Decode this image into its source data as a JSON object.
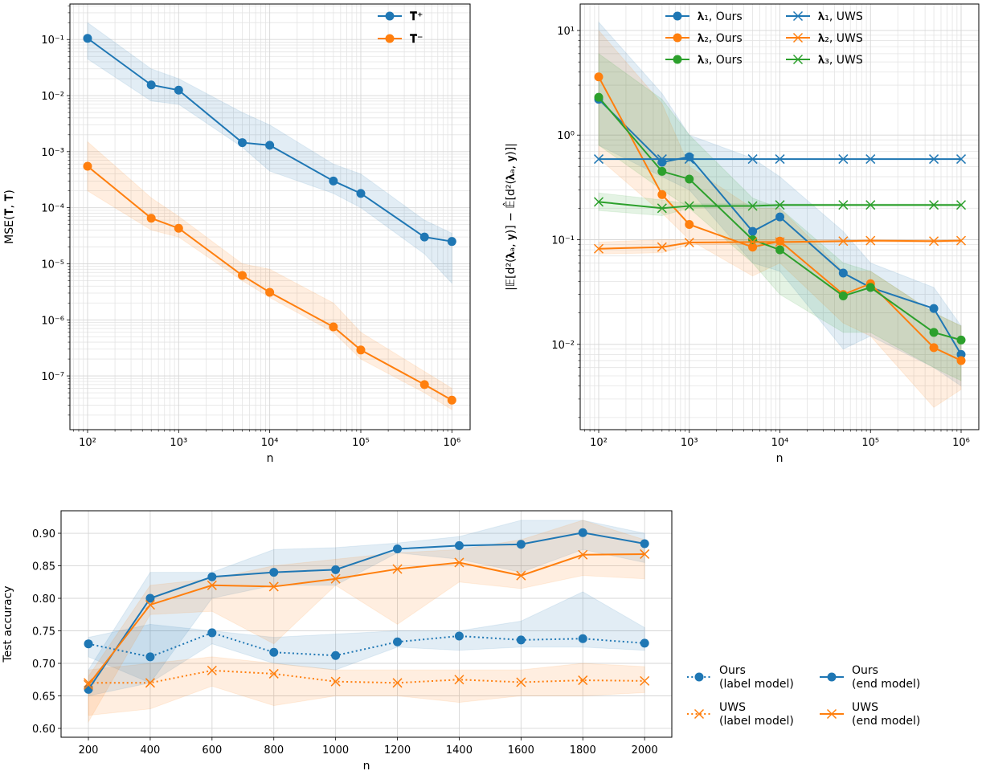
{
  "colors": {
    "blue": "#1f77b4",
    "orange": "#ff7f0e",
    "green": "#2ca02c"
  },
  "chart_data": [
    {
      "type": "line",
      "xscale": "log",
      "yscale": "log",
      "xlabel": "n",
      "ylabel": "MSE(𝐓, 𝐓̂)",
      "xlim": [
        64,
        1585000
      ],
      "ylim": [
        1.1e-08,
        0.43
      ],
      "grid": "major and minor",
      "legend": "top-right",
      "xticks": [
        100,
        1000,
        10000,
        100000,
        1000000
      ],
      "xtick_labels": [
        "10²",
        "10³",
        "10⁴",
        "10⁵",
        "10⁶"
      ],
      "yticks": [
        1e-07,
        1e-06,
        1e-05,
        0.0001,
        0.001,
        0.01,
        0.1
      ],
      "ytick_labels": [
        "10⁻⁷",
        "10⁻⁶",
        "10⁻⁵",
        "10⁻⁴",
        "10⁻³",
        "10⁻²",
        "10⁻¹"
      ],
      "x": [
        100,
        500,
        1000,
        5000,
        10000,
        50000,
        100000,
        500000,
        1000000
      ],
      "series": [
        {
          "name": "𝐓̂⁺",
          "color": "blue",
          "marker": "circle",
          "style": "solid",
          "values": [
            0.105,
            0.0155,
            0.0125,
            0.00145,
            0.0013,
            0.0003,
            0.00018,
            3e-05,
            2.5e-05
          ],
          "upper": [
            0.2,
            0.03,
            0.02,
            0.005,
            0.003,
            0.0006,
            0.0004,
            6e-05,
            3.5e-05
          ],
          "lower": [
            0.045,
            0.008,
            0.007,
            0.0012,
            0.00045,
            0.00018,
            0.0001,
            1.5e-05,
            4.5e-06
          ]
        },
        {
          "name": "𝐓̂⁻",
          "color": "orange",
          "marker": "circle",
          "style": "solid",
          "values": [
            0.00055,
            6.5e-05,
            4.3e-05,
            6.2e-06,
            3.1e-06,
            7.5e-07,
            2.9e-07,
            7e-08,
            3.7e-08
          ],
          "upper": [
            0.0015,
            0.00015,
            7e-05,
            1e-05,
            8e-06,
            2e-06,
            6e-07,
            1.2e-07,
            6e-08
          ],
          "lower": [
            0.0002,
            4e-05,
            3e-05,
            5e-06,
            2.5e-06,
            6e-07,
            2e-07,
            5e-08,
            2.5e-08
          ]
        }
      ]
    },
    {
      "type": "line",
      "xscale": "log",
      "yscale": "log",
      "xlabel": "n",
      "ylabel": "|𝔼[d²(𝛌ₐ, 𝐲)] − 𝔼̂[d²(𝛌ₐ, 𝐲)]|",
      "xlim": [
        62.5,
        1567000
      ],
      "ylim": [
        0.00153,
        17.9
      ],
      "grid": "major and minor",
      "legend": "top-right",
      "legend_columns": 2,
      "xticks": [
        100,
        1000,
        10000,
        100000,
        1000000
      ],
      "xtick_labels": [
        "10²",
        "10³",
        "10⁴",
        "10⁵",
        "10⁶"
      ],
      "yticks": [
        0.01,
        0.1,
        1,
        10
      ],
      "ytick_labels": [
        "10⁻²",
        "10⁻¹",
        "10⁰",
        "10¹"
      ],
      "x": [
        100,
        500,
        1000,
        5000,
        10000,
        50000,
        100000,
        500000,
        1000000
      ],
      "series": [
        {
          "name": "𝛌₁, Ours",
          "color": "blue",
          "marker": "circle",
          "style": "solid",
          "values": [
            2.2,
            0.55,
            0.62,
            0.12,
            0.165,
            0.048,
            0.035,
            0.022,
            0.008
          ],
          "upper": [
            12,
            2.5,
            1.0,
            0.6,
            0.4,
            0.12,
            0.06,
            0.035,
            0.015
          ],
          "lower": [
            0.8,
            0.4,
            0.3,
            0.06,
            0.05,
            0.009,
            0.012,
            0.006,
            0.004
          ]
        },
        {
          "name": "𝛌₂, Ours",
          "color": "orange",
          "marker": "circle",
          "style": "solid",
          "values": [
            3.6,
            0.27,
            0.14,
            0.085,
            0.097,
            0.03,
            0.038,
            0.0093,
            0.007
          ],
          "upper": [
            10,
            2,
            0.5,
            0.2,
            0.2,
            0.05,
            0.05,
            0.02,
            0.015
          ],
          "lower": [
            0.6,
            0.18,
            0.1,
            0.045,
            0.06,
            0.016,
            0.012,
            0.0025,
            0.0037
          ]
        },
        {
          "name": "𝛌₃, Ours",
          "color": "green",
          "marker": "circle",
          "style": "solid",
          "values": [
            2.3,
            0.45,
            0.38,
            0.1,
            0.08,
            0.029,
            0.035,
            0.013,
            0.011
          ],
          "upper": [
            6,
            2.2,
            1.0,
            0.25,
            0.2,
            0.06,
            0.05,
            0.02,
            0.015
          ],
          "lower": [
            0.8,
            0.3,
            0.2,
            0.06,
            0.03,
            0.013,
            0.013,
            0.006,
            0.0045
          ]
        },
        {
          "name": "𝛌₁, UWS",
          "color": "blue",
          "marker": "x",
          "style": "solid",
          "values": [
            0.59,
            0.59,
            0.59,
            0.59,
            0.59,
            0.59,
            0.59,
            0.59,
            0.59
          ]
        },
        {
          "name": "𝛌₂, UWS",
          "color": "orange",
          "marker": "x",
          "style": "solid",
          "values": [
            0.082,
            0.085,
            0.094,
            0.095,
            0.095,
            0.097,
            0.098,
            0.097,
            0.098
          ],
          "upper": [
            0.095,
            0.1,
            0.1,
            0.1,
            0.1,
            0.1,
            0.1,
            0.1,
            0.1
          ],
          "lower": [
            0.073,
            0.075,
            0.09,
            0.09,
            0.092,
            0.094,
            0.095,
            0.094,
            0.095
          ]
        },
        {
          "name": "𝛌₃, UWS",
          "color": "green",
          "marker": "x",
          "style": "solid",
          "values": [
            0.23,
            0.2,
            0.21,
            0.21,
            0.215,
            0.215,
            0.215,
            0.215,
            0.215
          ],
          "upper": [
            0.28,
            0.24,
            0.22,
            0.22,
            0.22,
            0.22,
            0.22,
            0.22,
            0.22
          ],
          "lower": [
            0.19,
            0.17,
            0.2,
            0.21,
            0.21,
            0.21,
            0.21,
            0.21,
            0.21
          ]
        }
      ]
    },
    {
      "type": "line",
      "xscale": "linear",
      "yscale": "linear",
      "xlabel": "n",
      "ylabel": "Test accuracy",
      "xlim": [
        111.5,
        2088
      ],
      "ylim": [
        0.5864,
        0.9346
      ],
      "grid": "major",
      "legend": "outside right",
      "legend_columns": 2,
      "xticks": [
        200,
        400,
        600,
        800,
        1000,
        1200,
        1400,
        1600,
        1800,
        2000
      ],
      "xtick_labels": [
        "200",
        "400",
        "600",
        "800",
        "1000",
        "1200",
        "1400",
        "1600",
        "1800",
        "2000"
      ],
      "yticks": [
        0.6,
        0.65,
        0.7,
        0.75,
        0.8,
        0.85,
        0.9
      ],
      "ytick_labels": [
        "0.60",
        "0.65",
        "0.70",
        "0.75",
        "0.80",
        "0.85",
        "0.90"
      ],
      "x": [
        200,
        400,
        600,
        800,
        1000,
        1200,
        1400,
        1600,
        1800,
        2000
      ],
      "series": [
        {
          "name": "Ours\n(label model)",
          "color": "blue",
          "marker": "circle",
          "style": "dotted",
          "values": [
            0.73,
            0.71,
            0.747,
            0.717,
            0.712,
            0.733,
            0.742,
            0.736,
            0.738,
            0.731
          ],
          "upper": [
            0.74,
            0.76,
            0.75,
            0.74,
            0.745,
            0.75,
            0.75,
            0.765,
            0.81,
            0.755
          ],
          "lower": [
            0.71,
            0.67,
            0.73,
            0.7,
            0.69,
            0.725,
            0.72,
            0.725,
            0.725,
            0.72
          ]
        },
        {
          "name": "UWS\n(label model)",
          "color": "orange",
          "marker": "x",
          "style": "dotted",
          "values": [
            0.67,
            0.67,
            0.689,
            0.684,
            0.672,
            0.67,
            0.675,
            0.671,
            0.674,
            0.673
          ],
          "upper": [
            0.69,
            0.7,
            0.71,
            0.7,
            0.69,
            0.69,
            0.69,
            0.69,
            0.7,
            0.695
          ],
          "lower": [
            0.62,
            0.63,
            0.665,
            0.635,
            0.65,
            0.65,
            0.64,
            0.65,
            0.65,
            0.655
          ]
        },
        {
          "name": "Ours\n(end model)",
          "color": "blue",
          "marker": "circle",
          "style": "solid",
          "values": [
            0.66,
            0.8,
            0.833,
            0.84,
            0.844,
            0.876,
            0.881,
            0.883,
            0.901,
            0.884
          ],
          "upper": [
            0.69,
            0.84,
            0.84,
            0.875,
            0.878,
            0.885,
            0.895,
            0.92,
            0.92,
            0.9
          ],
          "lower": [
            0.65,
            0.67,
            0.8,
            0.82,
            0.82,
            0.87,
            0.86,
            0.84,
            0.875,
            0.855
          ]
        },
        {
          "name": "UWS\n(end model)",
          "color": "orange",
          "marker": "x",
          "style": "solid",
          "values": [
            0.667,
            0.79,
            0.82,
            0.818,
            0.83,
            0.845,
            0.855,
            0.835,
            0.867,
            0.868
          ],
          "upper": [
            0.68,
            0.82,
            0.83,
            0.85,
            0.86,
            0.87,
            0.875,
            0.89,
            0.92,
            0.89
          ],
          "lower": [
            0.61,
            0.775,
            0.78,
            0.73,
            0.82,
            0.76,
            0.825,
            0.815,
            0.835,
            0.83
          ]
        }
      ]
    }
  ]
}
